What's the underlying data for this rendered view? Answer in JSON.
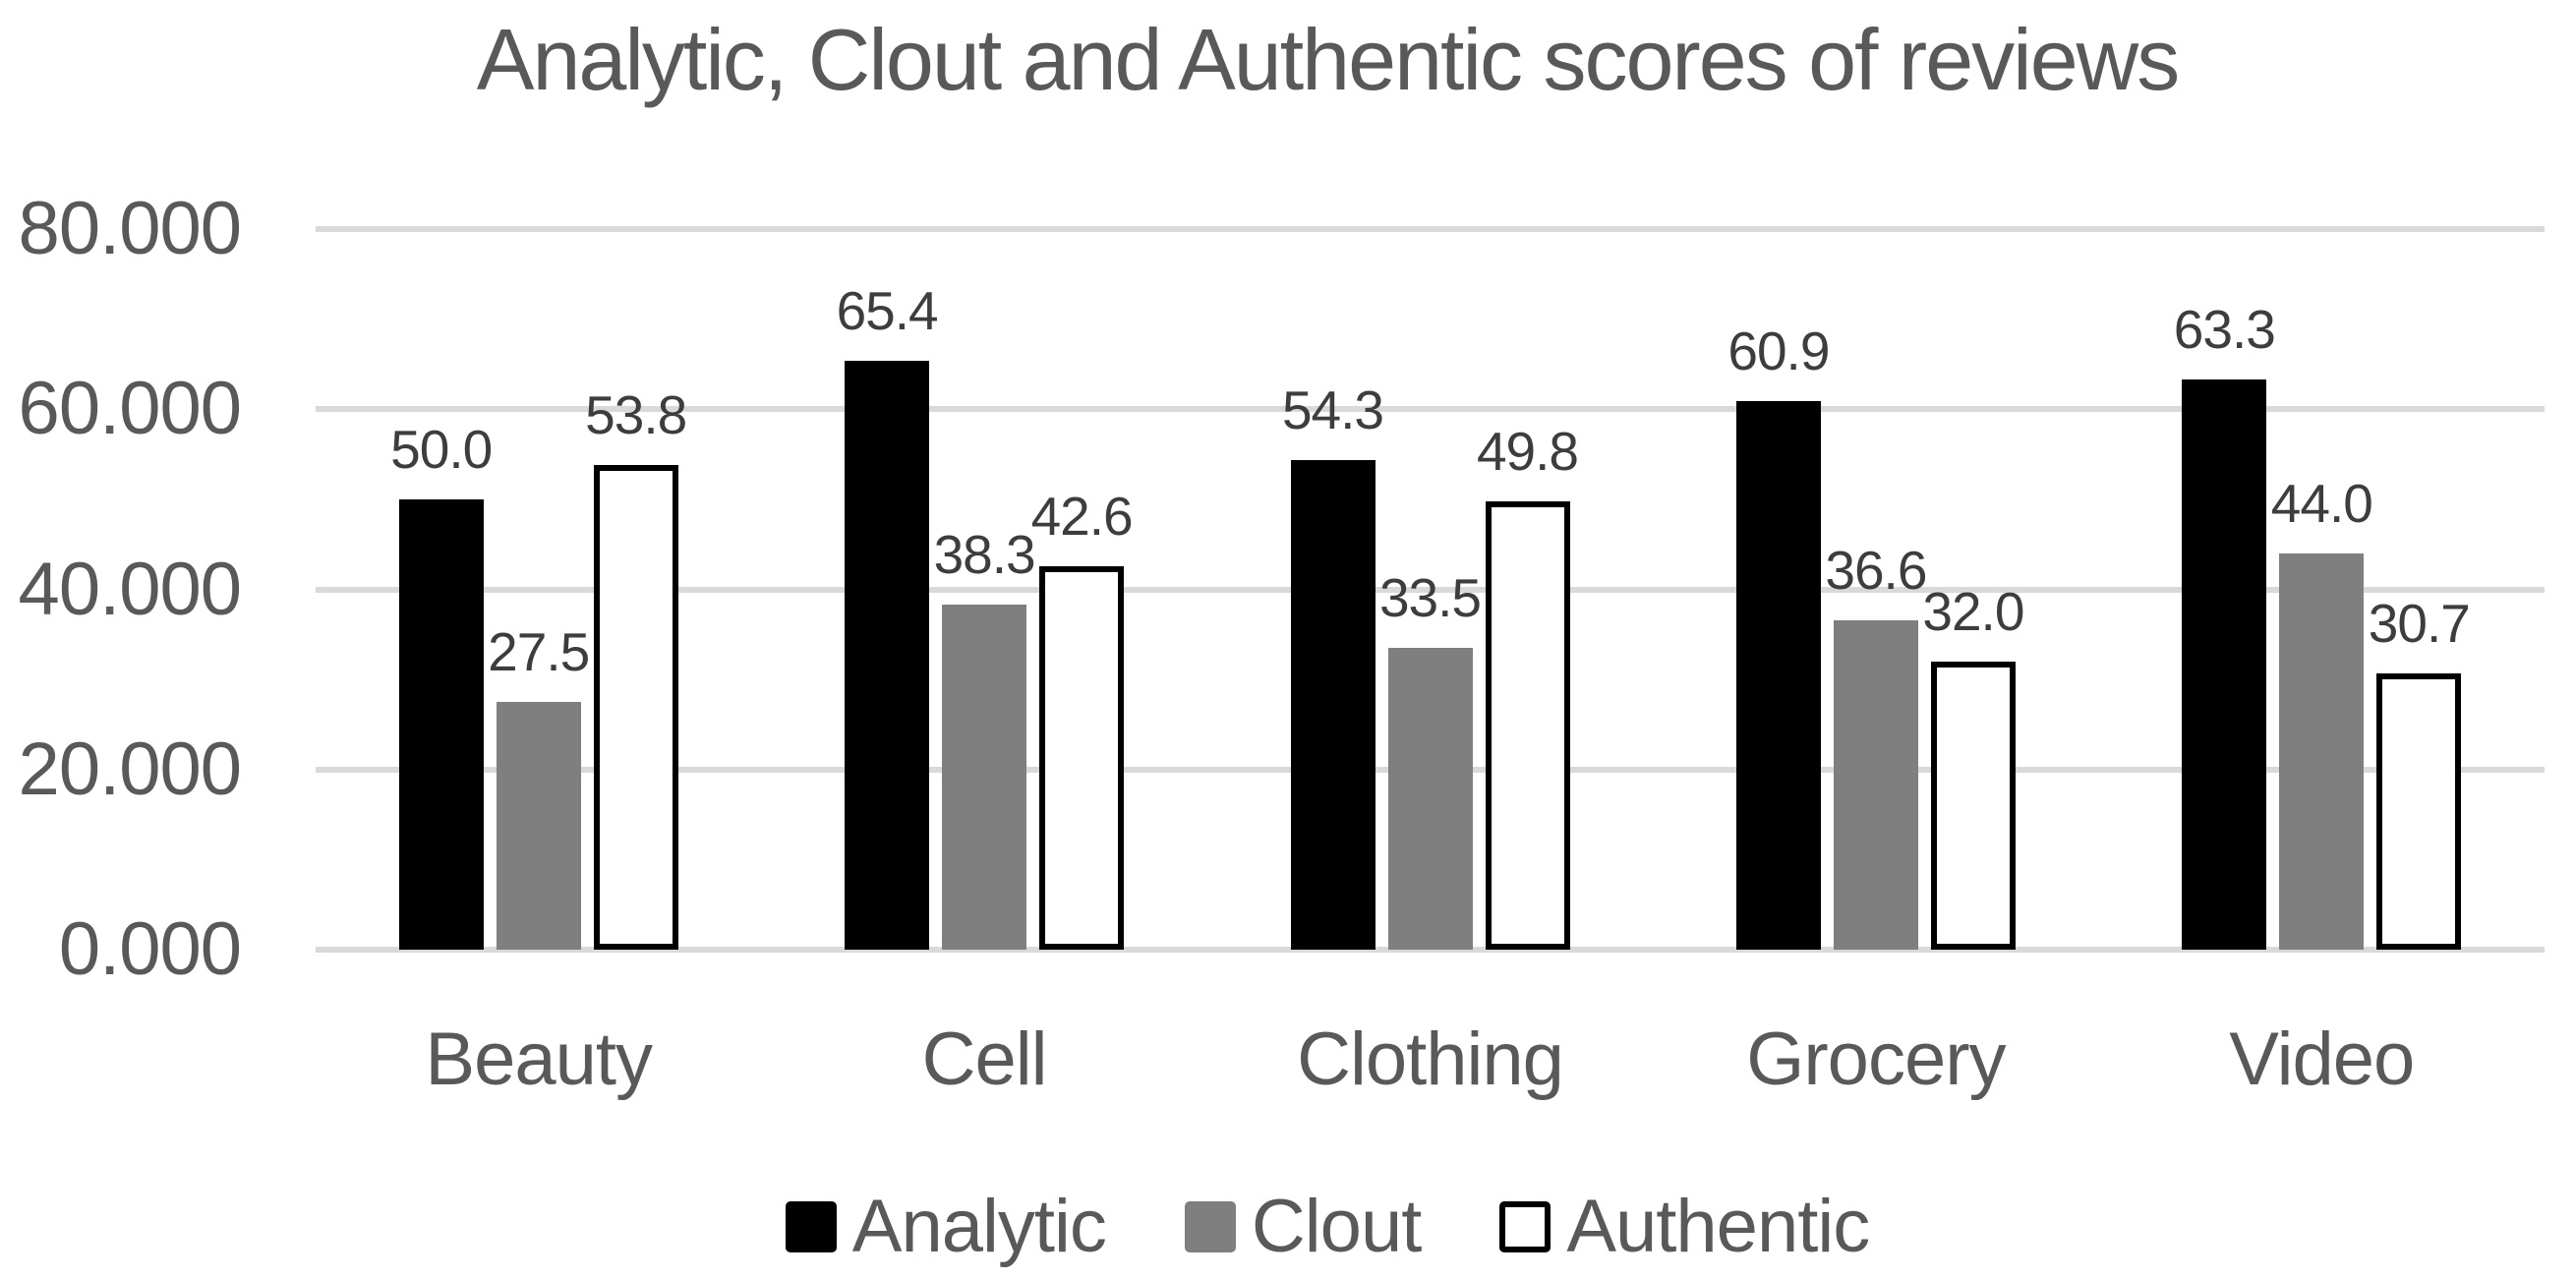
{
  "title": "Analytic, Clout and Authentic scores of reviews",
  "colors": {
    "title_text": "#595959",
    "axis_text": "#595959",
    "data_label_text": "#3d3d3d",
    "gridline": "#d9d9d9",
    "background": "#ffffff"
  },
  "chart_data": {
    "type": "bar",
    "title": "Analytic, Clout and Authentic scores of reviews",
    "categories": [
      "Beauty",
      "Cell",
      "Clothing",
      "Grocery",
      "Video"
    ],
    "series": [
      {
        "name": "Analytic",
        "fill": "#000000",
        "border": "none",
        "values": [
          50.0,
          65.4,
          54.3,
          60.9,
          63.3
        ],
        "labels": [
          "50.0",
          "65.4",
          "54.3",
          "60.9",
          "63.3"
        ]
      },
      {
        "name": "Clout",
        "fill": "#7f7f7f",
        "border": "none",
        "values": [
          27.5,
          38.3,
          33.5,
          36.6,
          44.0
        ],
        "labels": [
          "27.5",
          "38.3",
          "33.5",
          "36.6",
          "44.0"
        ]
      },
      {
        "name": "Authentic",
        "fill": "#ffffff",
        "border": "#000000",
        "values": [
          53.8,
          42.6,
          49.8,
          32.0,
          30.7
        ],
        "labels": [
          "53.8",
          "42.6",
          "49.8",
          "32.0",
          "30.7"
        ]
      }
    ],
    "y_axis": {
      "tick_labels": [
        "80.000",
        "60.000",
        "40.000",
        "20.000",
        "0.000"
      ],
      "tick_values": [
        80,
        60,
        40,
        20,
        0
      ],
      "min": 0,
      "max": 80,
      "step": 20
    },
    "legend": [
      "Analytic",
      "Clout",
      "Authentic"
    ],
    "legend_position": "bottom",
    "grid": true,
    "data_labels": "outside-end"
  }
}
